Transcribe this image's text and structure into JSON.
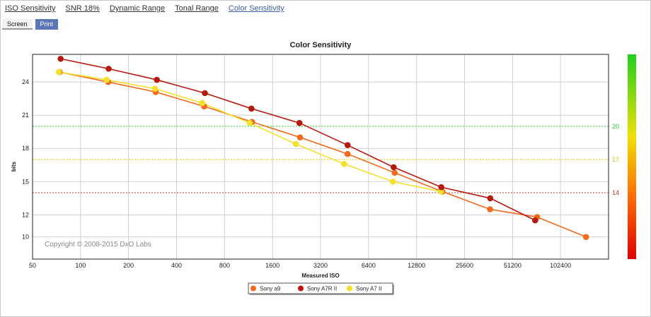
{
  "tabs": [
    {
      "label": "ISO Sensitivity",
      "active": false
    },
    {
      "label": "SNR 18%",
      "active": false
    },
    {
      "label": "Dynamic Range",
      "active": false
    },
    {
      "label": "Tonal Range",
      "active": false
    },
    {
      "label": "Color Sensitivity",
      "active": true
    }
  ],
  "mode_buttons": {
    "screen": "Screen",
    "print": "Print"
  },
  "copyright": "Copyright © 2008-2015 DxO Labs",
  "chart_data": {
    "type": "line",
    "title": "Color Sensitivity",
    "xlabel": "Measured ISO",
    "ylabel": "bits",
    "x_scale": "log2",
    "xlim": [
      50,
      204800
    ],
    "ylim": [
      8,
      26.5
    ],
    "x_ticks": [
      "50",
      "100",
      "200",
      "400",
      "800",
      "1600",
      "3200",
      "6400",
      "12800",
      "25600",
      "51200",
      "102400"
    ],
    "y_ticks": [
      "10",
      "12",
      "15",
      "18",
      "21",
      "24"
    ],
    "reference_lines": [
      {
        "value": 20,
        "label": "20",
        "color": "#2ecc2e"
      },
      {
        "value": 17,
        "label": "17",
        "color": "#e6c400"
      },
      {
        "value": 14,
        "label": "14",
        "color": "#c0392b"
      }
    ],
    "color_scale": {
      "stops": [
        "#1fd11f",
        "#f0e000",
        "#ff6a00",
        "#e00000"
      ]
    },
    "legend_position": "bottom-center",
    "series": [
      {
        "name": "Sony a9",
        "color": "#f26b1d",
        "x": [
          74,
          149,
          296,
          596,
          1190,
          2380,
          4730,
          9340,
          18600,
          37000,
          73000,
          148000
        ],
        "y": [
          24.9,
          24.0,
          23.1,
          21.8,
          20.4,
          19.0,
          17.5,
          15.8,
          14.1,
          12.5,
          11.8,
          10.0
        ]
      },
      {
        "name": "Sony A7R II",
        "color": "#b5190f",
        "x": [
          75,
          150,
          301,
          602,
          1180,
          2360,
          4730,
          9200,
          18300,
          37100,
          71000
        ],
        "y": [
          26.1,
          25.2,
          24.2,
          23.0,
          21.6,
          20.3,
          18.3,
          16.3,
          14.5,
          13.5,
          11.5
        ]
      },
      {
        "name": "Sony A7 II",
        "color": "#f5e02a",
        "x": [
          73,
          146,
          293,
          580,
          1150,
          2240,
          4500,
          9100,
          18200
        ],
        "y": [
          24.9,
          24.2,
          23.4,
          22.1,
          20.3,
          18.4,
          16.6,
          15.0,
          14.1
        ]
      }
    ]
  }
}
